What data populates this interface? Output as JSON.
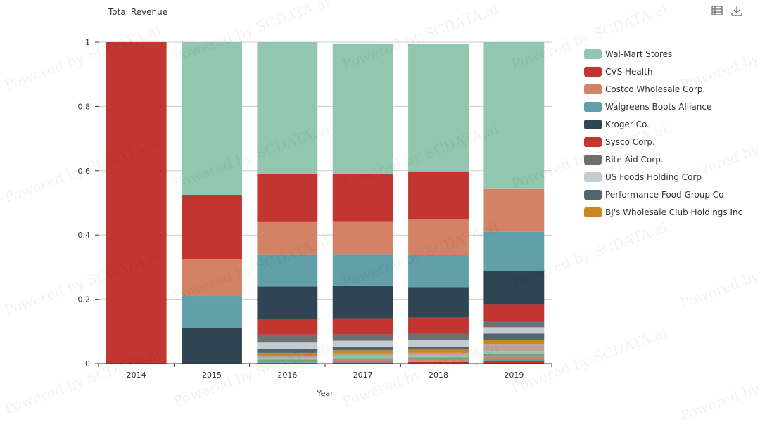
{
  "watermark": "Powered by SCDATA.ai",
  "toolbar": {
    "icons": [
      "data-view-icon",
      "download-icon"
    ]
  },
  "chart_data": {
    "type": "bar",
    "stacked": true,
    "title": "Total Revenue",
    "xlabel": "Year",
    "ylabel": "",
    "ylim": [
      0,
      1
    ],
    "yticks": [
      "0",
      "0.2",
      "0.4",
      "0.6",
      "0.8",
      "1"
    ],
    "categories": [
      "2014",
      "2015",
      "2016",
      "2017",
      "2018",
      "2019"
    ],
    "grid": true,
    "legend_position": "right",
    "series": [
      {
        "name": "Wal-Mart Stores",
        "color": "#91c7ae",
        "values": [
          0,
          0.475,
          0.41,
          0.405,
          0.397,
          0.457
        ]
      },
      {
        "name": "CVS Health",
        "color": "#c23531",
        "values": [
          1,
          0.2,
          0.15,
          0.15,
          0.15,
          0
        ]
      },
      {
        "name": "Costco Wholesale Corp.",
        "color": "#d48265",
        "values": [
          0,
          0.115,
          0.1,
          0.1,
          0.11,
          0.133
        ]
      },
      {
        "name": "Walgreens Boots Alliance",
        "color": "#61a0a8",
        "values": [
          0,
          0.1,
          0.1,
          0.1,
          0.1,
          0.122
        ]
      },
      {
        "name": "Kroger Co.",
        "color": "#2f4554",
        "values": [
          0,
          0.11,
          0.1,
          0.1,
          0.095,
          0.105
        ]
      },
      {
        "name": "Sysco Corp.",
        "color": "#c23531",
        "values": [
          0,
          0,
          0.05,
          0.05,
          0.05,
          0.05
        ]
      },
      {
        "name": "Rite Aid Corp.",
        "color": "#6e7074",
        "values": [
          0,
          0,
          0.025,
          0.02,
          0.02,
          0.02
        ]
      },
      {
        "name": "US Foods Holding Corp",
        "color": "#c4ccd3",
        "values": [
          0,
          0,
          0.02,
          0.02,
          0.02,
          0.02
        ]
      },
      {
        "name": "Performance Food Group Co",
        "color": "#546570",
        "values": [
          0,
          0,
          0.012,
          0.01,
          0.01,
          0.02
        ]
      },
      {
        "name": "BJ's Wholesale Club Holdings Inc",
        "color": "#ca8622",
        "values": [
          0,
          0,
          0.01,
          0.01,
          0.01,
          0.012
        ]
      },
      {
        "name": "",
        "color": "#bda29a",
        "values": [
          0,
          0,
          0.006,
          0.008,
          0.008,
          0.022
        ]
      },
      {
        "name": "",
        "color": "#91c7ae",
        "values": [
          0,
          0,
          0.005,
          0.006,
          0.006,
          0.01
        ]
      },
      {
        "name": "",
        "color": "#749f83",
        "values": [
          0,
          0,
          0.004,
          0.005,
          0.005,
          0.008
        ]
      },
      {
        "name": "",
        "color": "#d48265",
        "values": [
          0,
          0,
          0.004,
          0.005,
          0.005,
          0.007
        ]
      },
      {
        "name": "",
        "color": "#61a0a8",
        "values": [
          0,
          0,
          0.002,
          0.004,
          0.004,
          0.006
        ]
      },
      {
        "name": "",
        "color": "#c23531",
        "values": [
          0,
          0,
          0.002,
          0.003,
          0.005,
          0.008
        ]
      }
    ]
  }
}
